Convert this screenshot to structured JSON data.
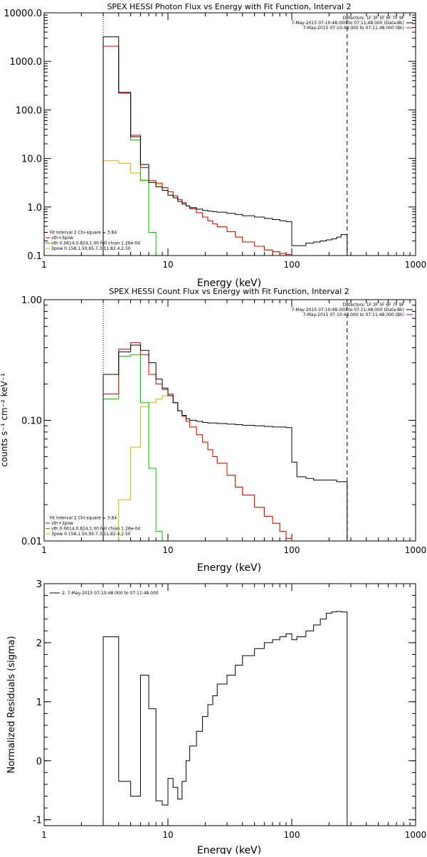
{
  "chart_data": [
    {
      "type": "line",
      "title": "SPEX HESSI Photon Flux vs Energy with Fit Function, Interval 2",
      "xlabel": "Energy (keV)",
      "ylabel": "",
      "xscale": "log",
      "yscale": "log",
      "xlim": [
        1,
        1000
      ],
      "ylim": [
        0.1,
        10000
      ],
      "xtick_labels": [
        "1",
        "10",
        "100",
        "1000"
      ],
      "ytick_labels": [
        "0.1",
        "1.0",
        "10.0",
        "100.0",
        "1000.0",
        "10000.0"
      ],
      "ytick_values": [
        0.1,
        1,
        10,
        100,
        1000,
        10000
      ],
      "header_lines": [
        "Detectors: 1F 3F 5F 6F 7F 9F",
        "7-May-2015 07:10:48.000 to 07:11:48.000 (Data-Bk)",
        "7-May-2015 07:10:48.000 to 07:11:48.000 (Bk)"
      ],
      "header_colors": [
        "",
        "#000000",
        "#cc0066"
      ],
      "fit_lines": [
        "Fit Interval 2   Chi-square = 3.84",
        "vth+3pow",
        "vth 0.0614,0.824,1.00  full chian 1.26e-04",
        "3pow 0.158,1.50,95.7,3.11,82.4,2.50"
      ],
      "fit_colors": [
        "",
        "#d40000",
        "#00c000",
        "#d4b000"
      ],
      "vlines": [
        {
          "x": 3,
          "style": "dotted"
        },
        {
          "x": 280,
          "style": "dashed"
        }
      ],
      "series": [
        {
          "name": "Data-Bk",
          "color": "#000000",
          "edges": [
            3,
            4,
            5,
            6,
            7,
            8,
            9,
            10,
            11,
            12,
            13,
            14,
            15,
            17,
            19,
            21,
            23,
            25,
            30,
            35,
            40,
            50,
            60,
            70,
            80,
            90,
            100,
            110,
            130,
            150,
            170,
            190,
            210,
            230,
            250,
            280
          ],
          "values": [
            3200,
            230,
            28,
            7.5,
            3.2,
            2.6,
            2.2,
            1.75,
            1.55,
            1.3,
            1.15,
            1.05,
            0.97,
            0.9,
            0.85,
            0.82,
            0.8,
            0.78,
            0.74,
            0.7,
            0.66,
            0.62,
            0.58,
            0.55,
            0.52,
            0.5,
            0.16,
            0.16,
            0.18,
            0.19,
            0.2,
            0.21,
            0.22,
            0.24,
            0.27
          ]
        },
        {
          "name": "vth+3pow",
          "color": "#d40000",
          "edges": [
            3,
            4,
            5,
            6,
            7,
            8,
            9,
            10,
            11,
            12,
            13,
            14,
            15,
            17,
            19,
            21,
            23,
            25,
            30,
            35,
            40,
            50,
            60,
            70,
            80,
            90,
            100
          ],
          "values": [
            2050,
            220,
            30,
            6.5,
            3.5,
            3.1,
            2.5,
            2.05,
            1.7,
            1.42,
            1.22,
            1.05,
            0.92,
            0.76,
            0.62,
            0.52,
            0.45,
            0.39,
            0.31,
            0.24,
            0.19,
            0.155,
            0.13,
            0.12,
            0.11,
            0.105
          ]
        },
        {
          "name": "vth",
          "color": "#00c000",
          "edges": [
            3,
            4,
            5,
            6,
            7,
            8
          ],
          "values": [
            2050,
            220,
            24,
            3.5,
            0.3
          ]
        },
        {
          "name": "3pow",
          "color": "#d4b000",
          "edges": [
            3,
            4,
            5,
            6,
            7,
            8,
            9,
            10,
            11,
            12,
            13,
            14,
            15,
            17,
            19,
            21,
            23,
            25,
            30,
            35,
            40,
            50,
            60,
            70,
            80,
            90,
            100
          ],
          "values": [
            9,
            8,
            5,
            3.6,
            3.2,
            2.9,
            2.5,
            2.05,
            1.7,
            1.42,
            1.22,
            1.05,
            0.92,
            0.76,
            0.62,
            0.52,
            0.45,
            0.39,
            0.31,
            0.24,
            0.19,
            0.155,
            0.13,
            0.12,
            0.11,
            0.105
          ]
        }
      ]
    },
    {
      "type": "line",
      "title": "SPEX HESSI Count Flux vs Energy with Fit Function, Interval 2",
      "xlabel": "Energy (keV)",
      "ylabel": "counts s⁻¹ cm⁻² keV⁻¹",
      "xscale": "log",
      "yscale": "log",
      "xlim": [
        1,
        1000
      ],
      "ylim": [
        0.01,
        1
      ],
      "xtick_labels": [
        "1",
        "10",
        "100",
        "1000"
      ],
      "ytick_labels": [
        "0.01",
        "0.10",
        "1.00"
      ],
      "ytick_values": [
        0.01,
        0.1,
        1
      ],
      "header_lines": [
        "Detectors: 1F 3F 5F 6F 7F 9F",
        "7-May-2015 07:10:48.000 to 07:11:48.000 (Data-Bk)",
        "7-May-2015 07:10:48.000 to 07:11:48.000 (Bk)"
      ],
      "header_colors": [
        "",
        "#000000",
        "#cc0066"
      ],
      "fit_lines": [
        "Fit Interval 2   Chi-square = 3.84",
        "vth+3pow",
        "vth 0.0614,0.824,1.00  full chian 1.26e-04",
        "3pow 0.158,1.50,95.7,3.11,82.4,2.50"
      ],
      "fit_colors": [
        "",
        "#d40000",
        "#00c000",
        "#d4b000"
      ],
      "vlines": [
        {
          "x": 3,
          "style": "dotted"
        },
        {
          "x": 280,
          "style": "dashed"
        }
      ],
      "series": [
        {
          "name": "Data-Bk",
          "color": "#000000",
          "edges": [
            3,
            4,
            5,
            6,
            7,
            8,
            9,
            10,
            11,
            12,
            13,
            14,
            15,
            17,
            19,
            21,
            23,
            25,
            30,
            35,
            40,
            50,
            60,
            70,
            80,
            90,
            100,
            110,
            130,
            150,
            170,
            190,
            210,
            230,
            250,
            280
          ],
          "values": [
            0.24,
            0.37,
            0.42,
            0.38,
            0.3,
            0.22,
            0.185,
            0.16,
            0.14,
            0.12,
            0.11,
            0.103,
            0.1,
            0.098,
            0.096,
            0.095,
            0.095,
            0.094,
            0.093,
            0.092,
            0.091,
            0.09,
            0.089,
            0.088,
            0.088,
            0.087,
            0.045,
            0.034,
            0.033,
            0.032,
            0.032,
            0.032,
            0.032,
            0.031,
            0.031
          ]
        },
        {
          "name": "vth+3pow",
          "color": "#d40000",
          "edges": [
            3,
            4,
            5,
            6,
            7,
            8,
            9,
            10,
            11,
            12,
            13,
            14,
            15,
            17,
            19,
            21,
            23,
            25,
            30,
            35,
            40,
            50,
            60,
            70,
            80,
            90,
            100
          ],
          "values": [
            0.165,
            0.39,
            0.44,
            0.35,
            0.24,
            0.2,
            0.18,
            0.165,
            0.14,
            0.12,
            0.108,
            0.098,
            0.088,
            0.076,
            0.066,
            0.057,
            0.05,
            0.044,
            0.035,
            0.028,
            0.024,
            0.019,
            0.016,
            0.014,
            0.012,
            0.0105
          ]
        },
        {
          "name": "vth",
          "color": "#00c000",
          "edges": [
            3,
            4,
            5,
            6,
            7,
            8,
            9
          ],
          "values": [
            0.15,
            0.34,
            0.35,
            0.14,
            0.04,
            0.012
          ]
        },
        {
          "name": "3pow",
          "color": "#d4b000",
          "edges": [
            3,
            4,
            5,
            6,
            7,
            8,
            9,
            10,
            11,
            12,
            13,
            14,
            15,
            17,
            19,
            21,
            23,
            25,
            30,
            35,
            40,
            50,
            60,
            70,
            80,
            90,
            100
          ],
          "values": [
            0.01,
            0.022,
            0.06,
            0.13,
            0.14,
            0.15,
            0.16,
            0.165,
            0.14,
            0.12,
            0.108,
            0.098,
            0.088,
            0.076,
            0.066,
            0.057,
            0.05,
            0.044,
            0.035,
            0.028,
            0.024,
            0.019,
            0.016,
            0.014,
            0.012,
            0.0105
          ]
        }
      ]
    },
    {
      "type": "line",
      "title": "",
      "xlabel": "Energy (keV)",
      "ylabel": "Normalized Residuals (sigma)",
      "xscale": "log",
      "yscale": "linear",
      "xlim": [
        1,
        1000
      ],
      "ylim": [
        -1.1,
        3
      ],
      "xtick_labels": [
        "1",
        "10",
        "100",
        "1000"
      ],
      "ytick_labels": [
        "-1",
        "0",
        "1",
        "2",
        "3"
      ],
      "ytick_values": [
        -1,
        0,
        1,
        2,
        3
      ],
      "legend_line": "2.  7-May-2015 07:10:48.000 to 07:11:48.000",
      "vlines": [],
      "series": [
        {
          "name": "",
          "color": "#000000",
          "edges": [
            3,
            4,
            5,
            6,
            7,
            8,
            9,
            10,
            11,
            12,
            13,
            14,
            15,
            17,
            19,
            21,
            23,
            25,
            30,
            35,
            40,
            50,
            60,
            70,
            80,
            90,
            100,
            110,
            130,
            150,
            170,
            190,
            210,
            230,
            250,
            280
          ],
          "values": [
            2.1,
            -0.35,
            -0.6,
            1.45,
            0.88,
            -0.68,
            -0.75,
            -0.3,
            -0.45,
            -0.65,
            -0.35,
            0.0,
            0.25,
            0.5,
            0.75,
            0.95,
            1.1,
            1.3,
            1.45,
            1.62,
            1.78,
            1.9,
            2.0,
            2.05,
            2.1,
            2.15,
            2.05,
            2.1,
            2.2,
            2.3,
            2.4,
            2.5,
            2.52,
            2.53,
            2.52
          ]
        }
      ]
    }
  ]
}
